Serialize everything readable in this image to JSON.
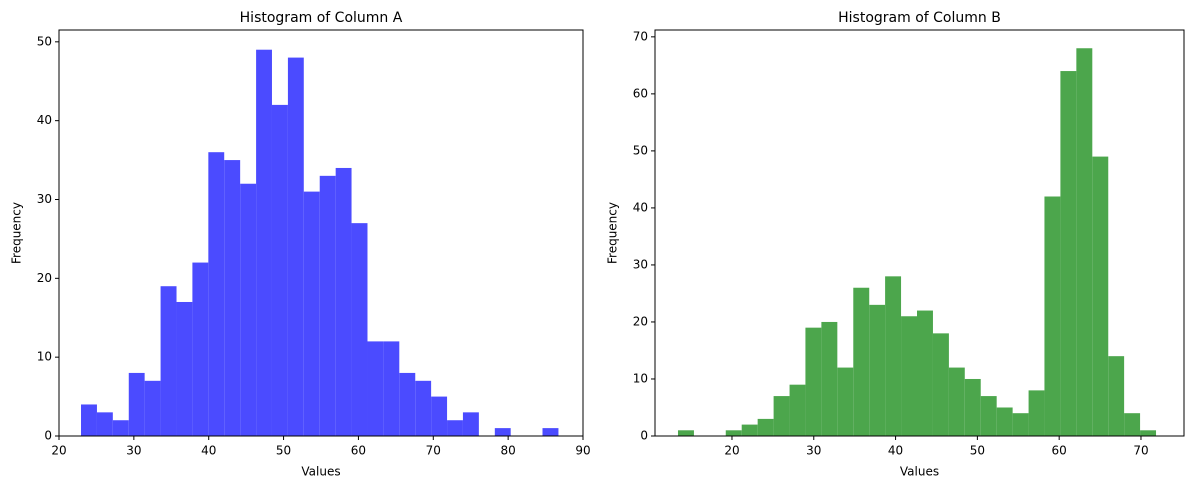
{
  "chart_data": [
    {
      "type": "histogram",
      "title": "Histogram of Column A",
      "xlabel": "Values",
      "ylabel": "Frequency",
      "color": "#4b4bff",
      "bins": [
        22.94,
        25.07,
        27.19,
        29.32,
        31.44,
        33.57,
        35.7,
        37.82,
        39.95,
        42.07,
        44.2,
        46.33,
        48.45,
        50.58,
        52.7,
        54.83,
        56.96,
        59.08,
        61.21,
        63.33,
        65.46,
        67.59,
        69.71,
        71.84,
        73.96,
        76.09,
        78.22,
        80.34,
        82.47,
        84.59,
        86.72
      ],
      "counts": [
        4,
        3,
        2,
        8,
        7,
        19,
        17,
        22,
        36,
        35,
        32,
        49,
        42,
        48,
        31,
        33,
        34,
        27,
        12,
        12,
        8,
        7,
        5,
        2,
        3,
        0,
        1,
        0,
        0,
        1
      ],
      "xlim": [
        20,
        90
      ],
      "xticks": [
        20,
        30,
        40,
        50,
        60,
        70,
        80,
        90
      ],
      "ylim": [
        0,
        51.5
      ],
      "yticks": [
        0,
        10,
        20,
        30,
        40,
        50
      ]
    },
    {
      "type": "histogram",
      "title": "Histogram of Column B",
      "xlabel": "Values",
      "ylabel": "Frequency",
      "color": "#4ca64c",
      "bins": [
        13.4,
        15.35,
        17.3,
        19.24,
        21.19,
        23.14,
        25.09,
        27.04,
        28.98,
        30.93,
        32.88,
        34.83,
        36.78,
        38.72,
        40.67,
        42.62,
        44.57,
        46.52,
        48.46,
        50.41,
        52.36,
        54.31,
        56.26,
        58.2,
        60.15,
        62.1,
        64.05,
        66.0,
        67.94,
        69.89,
        71.84
      ],
      "counts": [
        1,
        0,
        0,
        1,
        2,
        3,
        7,
        9,
        19,
        20,
        12,
        26,
        23,
        28,
        21,
        22,
        18,
        12,
        10,
        7,
        5,
        4,
        8,
        42,
        64,
        68,
        49,
        14,
        4,
        1
      ],
      "xlim": [
        10.59,
        75.26
      ],
      "xticks": [
        20,
        30,
        40,
        50,
        60,
        70
      ],
      "ylim": [
        0,
        71.2
      ],
      "yticks": [
        0,
        10,
        20,
        30,
        40,
        50,
        60,
        70
      ]
    }
  ]
}
